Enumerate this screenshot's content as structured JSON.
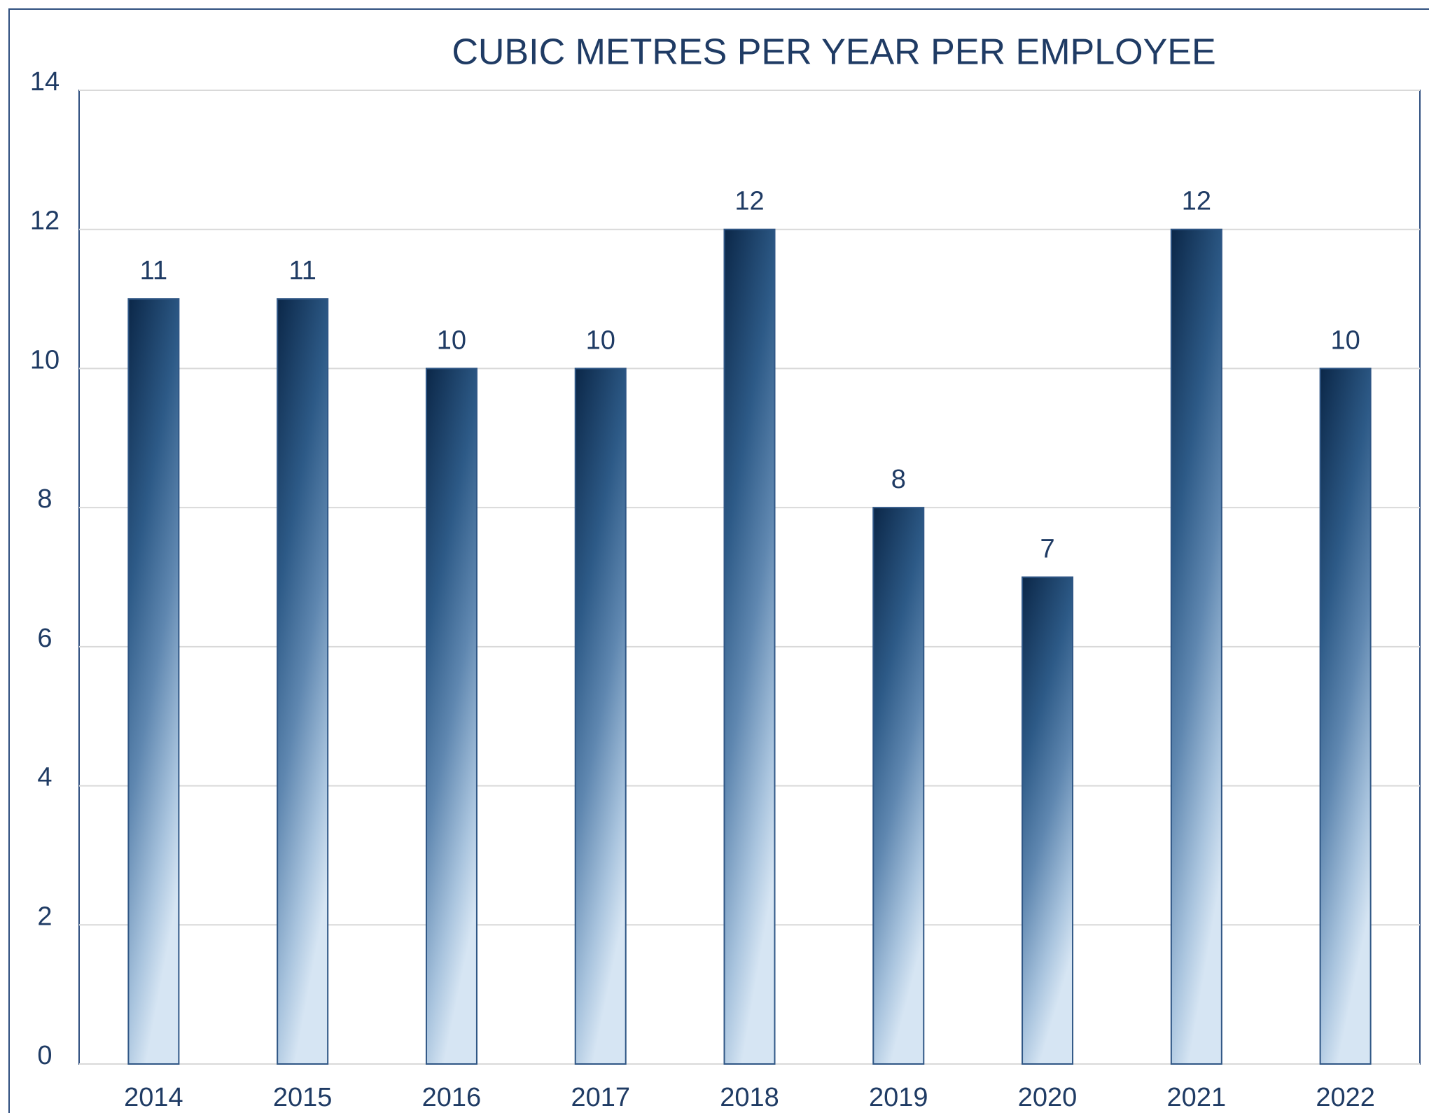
{
  "chart_data": {
    "type": "bar",
    "title": "CUBIC METRES PER YEAR PER EMPLOYEE",
    "categories": [
      "2014",
      "2015",
      "2016",
      "2017",
      "2018",
      "2019",
      "2020",
      "2021",
      "2022"
    ],
    "values": [
      11,
      11,
      10,
      10,
      12,
      8,
      7,
      12,
      10
    ],
    "color": "#2f5685",
    "ylim": [
      0,
      14
    ],
    "yticks": [
      0,
      2,
      4,
      6,
      8,
      10,
      12,
      14
    ],
    "grid": true
  }
}
